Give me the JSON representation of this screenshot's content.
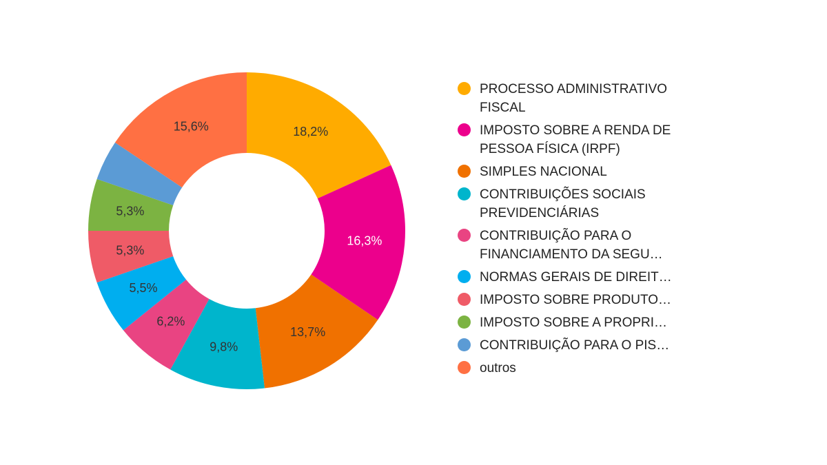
{
  "chart_data": {
    "type": "pie",
    "donut": true,
    "legend_position": "right",
    "slices": [
      {
        "label": "PROCESSO ADMINISTRATIVO FISCAL",
        "value": 18.2,
        "value_label": "18,2%",
        "color": "#FFAB00",
        "wrap": true
      },
      {
        "label": "IMPOSTO SOBRE A RENDA DE PESSOA FÍSICA (IRPF)",
        "value": 16.3,
        "value_label": "16,3%",
        "color": "#EC008C",
        "wrap": true
      },
      {
        "label": "SIMPLES NACIONAL",
        "value": 13.7,
        "value_label": "13,7%",
        "color": "#F07100",
        "wrap": false
      },
      {
        "label": "CONTRIBUIÇÕES SOCIAIS PREVIDENCIÁRIAS",
        "value": 9.8,
        "value_label": "9,8%",
        "color": "#00B5CC",
        "wrap": true
      },
      {
        "label": "CONTRIBUIÇÃO PARA O FINANCIAMENTO DA SEGU…",
        "value": 6.2,
        "value_label": "6,2%",
        "color": "#E94482",
        "wrap": true
      },
      {
        "label": "NORMAS GERAIS DE DIREIT…",
        "value": 5.5,
        "value_label": "5,5%",
        "color": "#00AEEF",
        "wrap": false
      },
      {
        "label": "IMPOSTO SOBRE PRODUTO…",
        "value": 5.3,
        "value_label": "5,3%",
        "color": "#EF5B67",
        "wrap": false
      },
      {
        "label": "IMPOSTO SOBRE A PROPRI…",
        "value": 5.3,
        "value_label": "5,3%",
        "color": "#7CB342",
        "wrap": false
      },
      {
        "label": "CONTRIBUIÇÃO PARA O PIS…",
        "value": 4.1,
        "value_label": "",
        "color": "#5B9BD5",
        "wrap": false
      },
      {
        "label": "outros",
        "value": 15.6,
        "value_label": "15,6%",
        "color": "#FF7043",
        "wrap": false
      }
    ]
  }
}
